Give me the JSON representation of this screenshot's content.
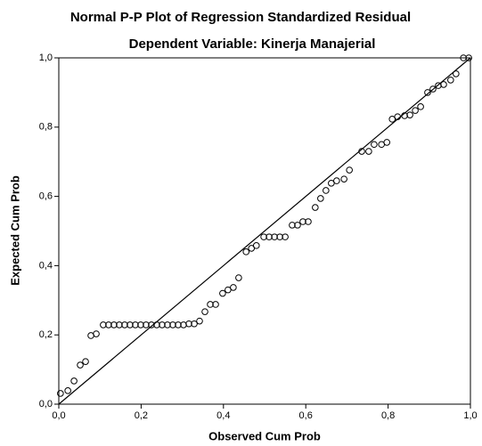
{
  "chart_data": {
    "type": "scatter",
    "title": "Normal P-P Plot of Regression Standardized Residual",
    "subtitle": "Dependent Variable: Kinerja Manajerial",
    "x_label": "Observed Cum Prob",
    "y_label": "Expected Cum Prob",
    "x": [
      0.004,
      0.022,
      0.037,
      0.052,
      0.065,
      0.078,
      0.091,
      0.108,
      0.121,
      0.134,
      0.147,
      0.16,
      0.173,
      0.186,
      0.199,
      0.212,
      0.225,
      0.238,
      0.251,
      0.264,
      0.277,
      0.29,
      0.303,
      0.316,
      0.329,
      0.342,
      0.355,
      0.368,
      0.381,
      0.398,
      0.411,
      0.424,
      0.437,
      0.455,
      0.468,
      0.48,
      0.498,
      0.511,
      0.524,
      0.537,
      0.55,
      0.567,
      0.58,
      0.593,
      0.606,
      0.623,
      0.636,
      0.649,
      0.662,
      0.675,
      0.693,
      0.706,
      0.736,
      0.753,
      0.766,
      0.784,
      0.797,
      0.81,
      0.823,
      0.84,
      0.853,
      0.866,
      0.879,
      0.896,
      0.909,
      0.922,
      0.935,
      0.952,
      0.965,
      0.983,
      0.996
    ],
    "series": [
      {
        "color": "#000000",
        "values": [
          0.031,
          0.039,
          0.067,
          0.113,
          0.123,
          0.198,
          0.203,
          0.229,
          0.229,
          0.229,
          0.229,
          0.229,
          0.229,
          0.229,
          0.229,
          0.229,
          0.229,
          0.229,
          0.229,
          0.229,
          0.229,
          0.229,
          0.229,
          0.232,
          0.232,
          0.24,
          0.267,
          0.288,
          0.288,
          0.32,
          0.33,
          0.337,
          0.365,
          0.44,
          0.45,
          0.458,
          0.483,
          0.483,
          0.483,
          0.483,
          0.483,
          0.517,
          0.517,
          0.527,
          0.527,
          0.568,
          0.594,
          0.617,
          0.638,
          0.645,
          0.65,
          0.676,
          0.73,
          0.73,
          0.75,
          0.75,
          0.756,
          0.823,
          0.83,
          0.833,
          0.835,
          0.848,
          0.859,
          0.9,
          0.91,
          0.92,
          0.923,
          0.936,
          0.954,
          1.0,
          1.0
        ]
      }
    ],
    "xlim": [
      0,
      1
    ],
    "ylim": [
      0,
      1
    ],
    "xticks": [
      {
        "value": 0,
        "label": "0,0"
      },
      {
        "value": 0.2,
        "label": "0,2"
      },
      {
        "value": 0.4,
        "label": "0,4"
      },
      {
        "value": 0.6,
        "label": "0,6"
      },
      {
        "value": 0.8,
        "label": "0,8"
      },
      {
        "value": 1,
        "label": "1,0"
      }
    ],
    "yticks": [
      {
        "value": 0,
        "label": "0,0"
      },
      {
        "value": 0.2,
        "label": "0,2"
      },
      {
        "value": 0.4,
        "label": "0,4"
      },
      {
        "value": 0.6,
        "label": "0,6"
      },
      {
        "value": 0.8,
        "label": "0,8"
      },
      {
        "value": 1,
        "label": "1,0"
      }
    ],
    "grid": false
  }
}
